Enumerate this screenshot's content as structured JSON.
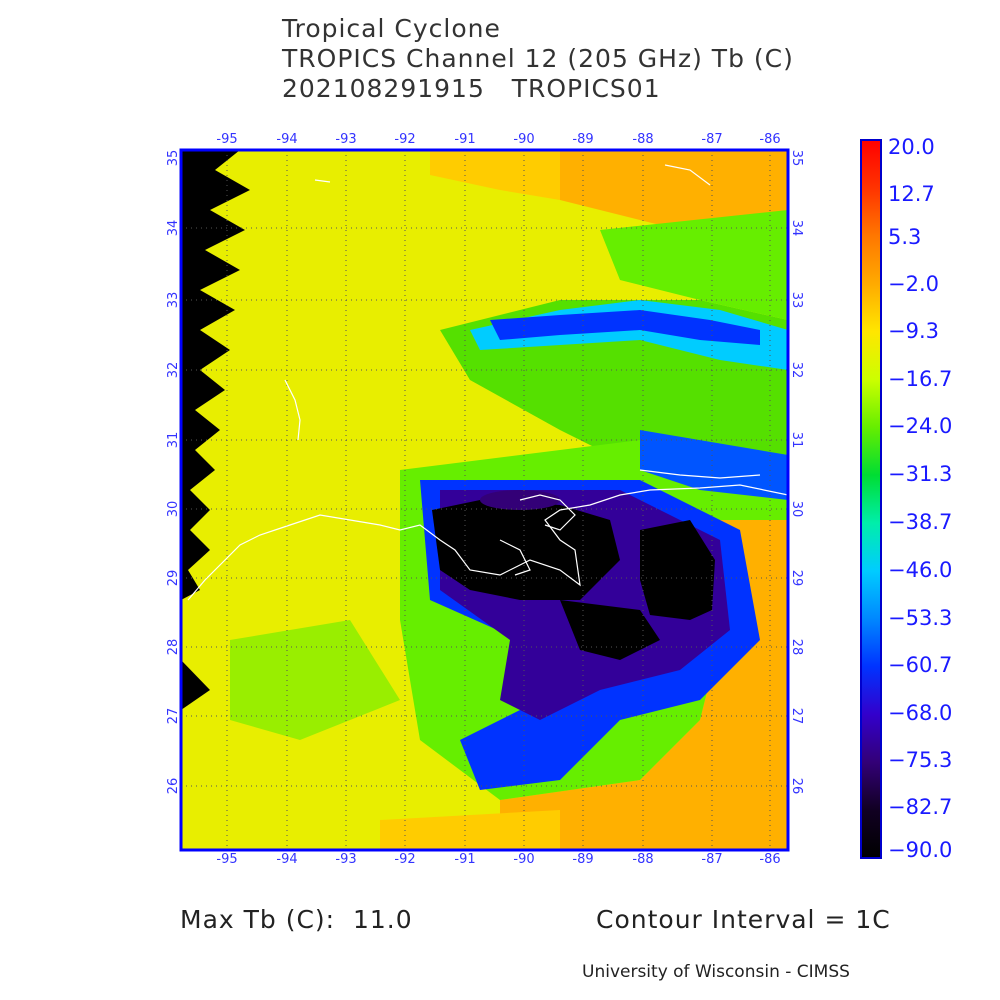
{
  "title": {
    "line1": "Tropical Cyclone",
    "line2": "TROPICS Channel 12 (205 GHz) Tb (C)",
    "line3": "202108291915   TROPICS01"
  },
  "map": {
    "lon_ticks": [
      "-95",
      "-94",
      "-93",
      "-92",
      "-91",
      "-90",
      "-89",
      "-88",
      "-87",
      "-86"
    ],
    "lat_ticks": [
      "26",
      "27",
      "28",
      "29",
      "30",
      "31",
      "32",
      "33",
      "34",
      "35"
    ],
    "frame_color": "#0000ff",
    "grid_color": "#666666",
    "coastline_color": "#ffffff"
  },
  "colorbar": {
    "labels": [
      "20.0",
      "12.7",
      "5.3",
      "−2.0",
      "−9.3",
      "−16.7",
      "−24.0",
      "−31.3",
      "−38.7",
      "−46.0",
      "−53.3",
      "−60.7",
      "−68.0",
      "−75.3",
      "−82.7",
      "−90.0"
    ],
    "colors": [
      "#ff0000",
      "#ff3300",
      "#ff7700",
      "#ffaa00",
      "#ffe600",
      "#ccff00",
      "#66ee00",
      "#00dd33",
      "#00eeaa",
      "#00ccff",
      "#0088ff",
      "#0033ff",
      "#3300cc",
      "#330077",
      "#110022",
      "#000000"
    ]
  },
  "footer": {
    "max_tb": "Max Tb (C):  11.0",
    "contour": "Contour Interval = 1C",
    "credit": "University of Wisconsin - CIMSS"
  }
}
